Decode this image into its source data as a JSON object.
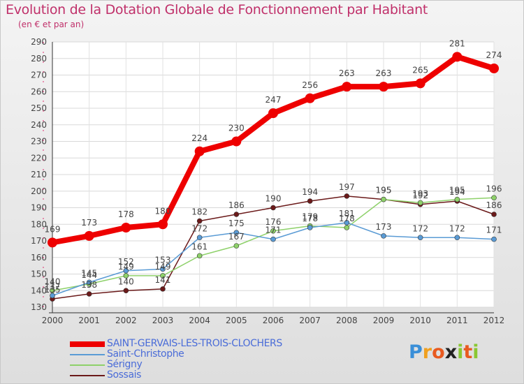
{
  "chart_data": {
    "type": "line",
    "title": "Evolution de la Dotation Globale de Fonctionnement par Habitant",
    "subtitle": "(en € et par an)",
    "x": [
      "2000",
      "2001",
      "2002",
      "2003",
      "2004",
      "2005",
      "2006",
      "2007",
      "2008",
      "2009",
      "2010",
      "2011",
      "2012"
    ],
    "ylim": [
      130,
      290
    ],
    "yticks": [
      "130",
      "140",
      "150",
      "160",
      "170",
      "180",
      "190",
      "200",
      "210",
      "220",
      "230",
      "240",
      "250",
      "260",
      "270",
      "280",
      "290"
    ],
    "grid": true,
    "series": [
      {
        "name": "SAINT-GERVAIS-LES-TROIS-CLOCHERS",
        "color": "#ee0000",
        "values": [
          169,
          173,
          178,
          180,
          224,
          230,
          247,
          256,
          263,
          263,
          265,
          281,
          274
        ],
        "labels": [
          "169",
          "173",
          "178",
          "180",
          "224",
          "230",
          "247",
          "256",
          "263",
          "263",
          "265",
          "281",
          "274"
        ]
      },
      {
        "name": "Saint-Christophe",
        "color": "#5a9bd5",
        "values": [
          137,
          145,
          152,
          153,
          172,
          175,
          171,
          178,
          181,
          173,
          172,
          172,
          171
        ],
        "labels": [
          "137",
          "145",
          "152",
          "153",
          "172",
          "175",
          "171",
          "178",
          "181",
          "173",
          "172",
          "172",
          "171"
        ]
      },
      {
        "name": "Sérigny",
        "color": "#8ed16a",
        "values": [
          140,
          144,
          149,
          149,
          161,
          167,
          176,
          179,
          178,
          195,
          193,
          195,
          196
        ],
        "labels": [
          "140",
          "144",
          "149",
          "149",
          "161",
          "167",
          "176",
          "179",
          "178",
          "195",
          "193",
          "195",
          "196"
        ]
      },
      {
        "name": "Sossais",
        "color": "#6b1a1a",
        "values": [
          135,
          138,
          140,
          141,
          182,
          186,
          190,
          194,
          197,
          195,
          192,
          194,
          186
        ],
        "labels": [
          "135",
          "138",
          "140",
          "141",
          "182",
          "186",
          "190",
          "194",
          "197",
          "195",
          "192",
          "194",
          "186"
        ]
      }
    ]
  },
  "branding": {
    "logo_letters": [
      "P",
      "r",
      "o",
      "x",
      "i",
      "t",
      "i"
    ],
    "logo_colors": [
      "#3a8fd8",
      "#f0a020",
      "#e85a20",
      "#222222",
      "#8ac832",
      "#e85a20",
      "#8ac832"
    ]
  }
}
